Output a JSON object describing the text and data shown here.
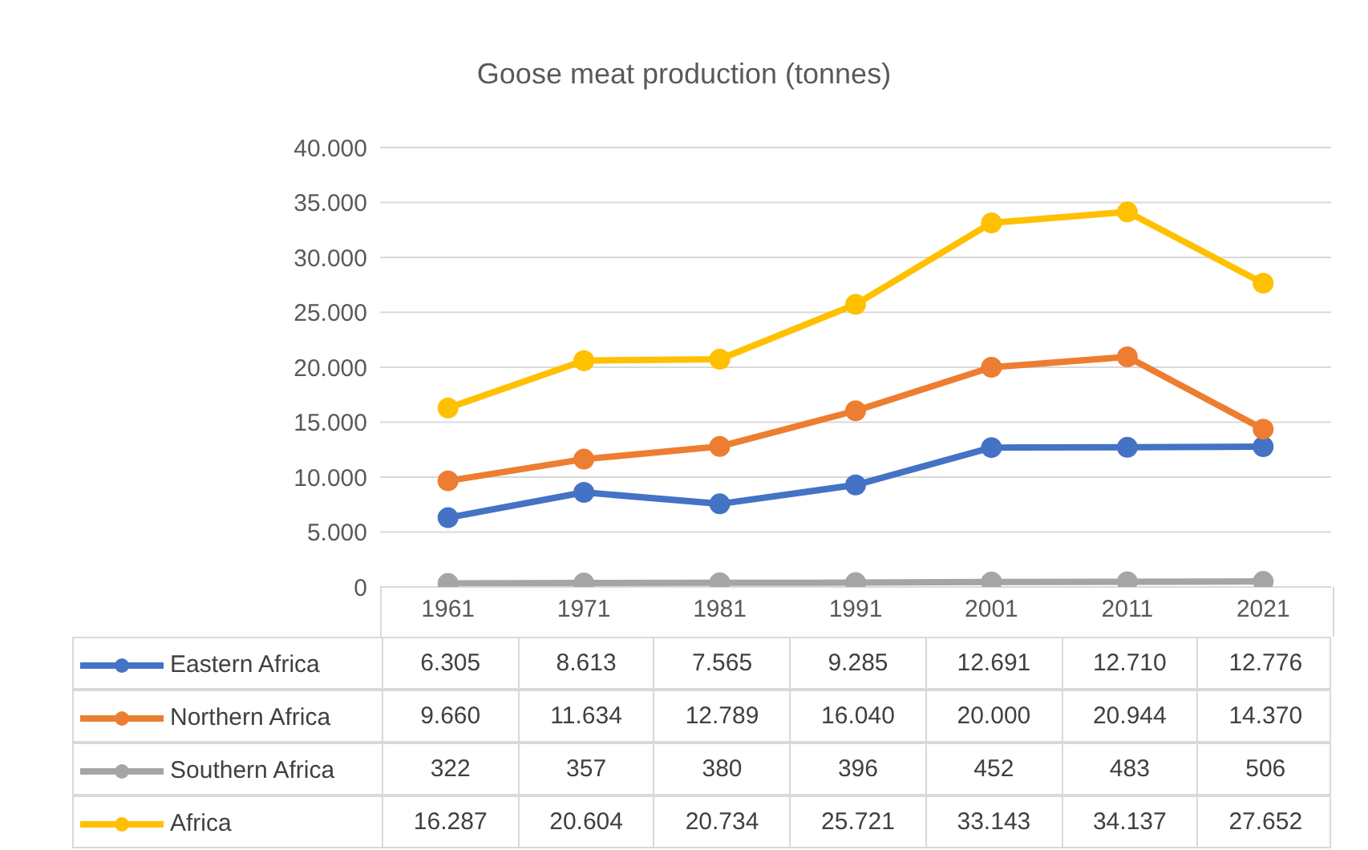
{
  "chart_data": {
    "type": "line",
    "title": "Goose meat production  (tonnes)",
    "categories": [
      "1961",
      "1971",
      "1981",
      "1991",
      "2001",
      "2011",
      "2021"
    ],
    "series": [
      {
        "name": "Eastern Africa",
        "color": "#4472c4",
        "values": [
          6305,
          8613,
          7565,
          9285,
          12691,
          12710,
          12776
        ],
        "value_labels": [
          "6.305",
          "8.613",
          "7.565",
          "9.285",
          "12.691",
          "12.710",
          "12.776"
        ]
      },
      {
        "name": "Northern Africa",
        "color": "#ed7d31",
        "values": [
          9660,
          11634,
          12789,
          16040,
          20000,
          20944,
          14370
        ],
        "value_labels": [
          "9.660",
          "11.634",
          "12.789",
          "16.040",
          "20.000",
          "20.944",
          "14.370"
        ]
      },
      {
        "name": "Southern Africa",
        "color": "#a5a5a5",
        "values": [
          322,
          357,
          380,
          396,
          452,
          483,
          506
        ],
        "value_labels": [
          "322",
          "357",
          "380",
          "396",
          "452",
          "483",
          "506"
        ]
      },
      {
        "name": "Africa",
        "color": "#ffc000",
        "values": [
          16287,
          20604,
          20734,
          25721,
          33143,
          34137,
          27652
        ],
        "value_labels": [
          "16.287",
          "20.604",
          "20.734",
          "25.721",
          "33.143",
          "34.137",
          "27.652"
        ]
      }
    ],
    "ylim": [
      0,
      40000
    ],
    "yticks": [
      {
        "value": 0,
        "label": "0"
      },
      {
        "value": 5000,
        "label": "5.000"
      },
      {
        "value": 10000,
        "label": "10.000"
      },
      {
        "value": 15000,
        "label": "15.000"
      },
      {
        "value": 20000,
        "label": "20.000"
      },
      {
        "value": 25000,
        "label": "25.000"
      },
      {
        "value": 30000,
        "label": "30.000"
      },
      {
        "value": 35000,
        "label": "35.000"
      },
      {
        "value": 40000,
        "label": "40.000"
      }
    ],
    "grid": "y",
    "legend": "bottom",
    "marker": "circle",
    "line_style": "solid"
  }
}
